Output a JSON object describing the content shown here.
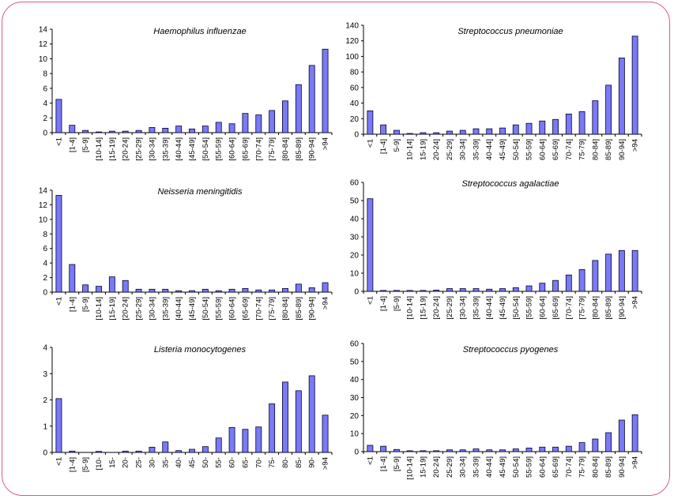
{
  "colors": {
    "bar_fill": "#7a7af5",
    "bar_stroke": "#000033",
    "frame": "#e0578a",
    "axis": "#000000"
  },
  "chart_data": [
    {
      "type": "bar",
      "title": "Haemophilus influenzae",
      "ylim": [
        0,
        14
      ],
      "yticks": [
        0,
        2,
        4,
        6,
        8,
        10,
        12,
        14
      ],
      "categories": [
        "<1",
        "[1-4]",
        "[5-9]",
        "[10-14]",
        "[15-19]",
        "[20-24]",
        "[25-29]",
        "[30-34]",
        "[35-39]",
        "[40-44]",
        "[45-49]",
        "[50-54]",
        "[55-59]",
        "[60-64]",
        "[65-69]",
        "[70-74]",
        "[75-79]",
        "[80-84]",
        "[85-89]",
        "[90-94]",
        ">94"
      ],
      "values": [
        4.5,
        1.0,
        0.3,
        0.1,
        0.2,
        0.2,
        0.3,
        0.7,
        0.6,
        0.9,
        0.5,
        0.9,
        1.4,
        1.2,
        2.6,
        2.4,
        3.0,
        4.3,
        6.5,
        9.1,
        11.3
      ]
    },
    {
      "type": "bar",
      "title": "Streptococcus pneumoniae",
      "ylim": [
        0,
        140
      ],
      "yticks": [
        0,
        20,
        40,
        60,
        80,
        100,
        120,
        140
      ],
      "categories": [
        "<1",
        "[1-4]",
        "5-9]",
        "10-14]",
        "15-19]",
        "20-24]",
        "25-29]",
        "30-34]",
        "35-39]",
        "40-44]",
        "45-49]",
        "50-54]",
        "55-59]",
        "60-64]",
        "65-69]",
        "70-74]",
        "75-79]",
        "80-84]",
        "85-89]",
        "90-94]",
        ">94"
      ],
      "values": [
        30,
        12,
        5,
        1,
        2,
        2,
        4,
        5,
        7,
        7,
        8,
        12,
        14,
        17,
        19,
        26,
        29,
        43,
        63,
        98,
        126
      ]
    },
    {
      "type": "bar",
      "title": "Neisseria meningitidis",
      "ylim": [
        0,
        14
      ],
      "yticks": [
        0,
        2,
        4,
        6,
        8,
        10,
        12,
        14
      ],
      "categories": [
        "<1",
        "[1-4]",
        "[5-9]",
        "[10-14]",
        "[15-19]",
        "[20-24]",
        "[25-29]",
        "[30-34]",
        "[35-39]",
        "[40-44]",
        "[45-49]",
        "[50-54]",
        "[55-59]",
        "[60-64]",
        "[65-69]",
        "[70-74]",
        "[75-79]",
        "[80-84]",
        "[85-89]",
        "[90-94]",
        ">94"
      ],
      "values": [
        13.3,
        3.8,
        1.0,
        0.8,
        2.1,
        1.6,
        0.4,
        0.4,
        0.4,
        0.2,
        0.2,
        0.4,
        0.2,
        0.4,
        0.5,
        0.3,
        0.3,
        0.5,
        1.1,
        0.6,
        1.3
      ]
    },
    {
      "type": "bar",
      "title": "Streptococcus agalactiae",
      "ylim": [
        0,
        60
      ],
      "yticks": [
        0,
        10,
        20,
        30,
        40,
        50,
        60
      ],
      "categories": [
        "<1",
        "[1-4]",
        "[5-9]",
        "[10-14]",
        "[15-19]",
        "[20-24]",
        "[25-29]",
        "[30-34]",
        "[35-39]",
        "[40-44]",
        "[45-49]",
        "[50-54]",
        "[55-59]",
        "[60-64]",
        "[65-69]",
        "[70-74]",
        "[75-79]",
        "[80-84]",
        "[85-89]",
        "[90-94]",
        ">94"
      ],
      "values": [
        51,
        0.5,
        0.5,
        0.5,
        0.5,
        0.7,
        1.5,
        1.5,
        1.5,
        1.2,
        1.5,
        2,
        3,
        4.5,
        6,
        9,
        12,
        17,
        20.5,
        22.5,
        22.5
      ]
    },
    {
      "type": "bar",
      "title": "Listeria monocytogenes",
      "ylim": [
        0,
        4
      ],
      "yticks": [
        0,
        1,
        2,
        3,
        4
      ],
      "categories": [
        "<1",
        "[1-4]",
        "[5-9]",
        "[10-",
        "15-",
        "20-",
        "25-",
        "30-",
        "35-",
        "40-",
        "45-",
        "50-",
        "55-",
        "60-",
        "65-",
        "70-",
        "75-",
        "80-",
        "85-",
        "90-",
        ">94"
      ],
      "values": [
        2.05,
        0.05,
        0.0,
        0.04,
        0.0,
        0.05,
        0.05,
        0.2,
        0.4,
        0.07,
        0.12,
        0.22,
        0.55,
        0.95,
        0.88,
        0.97,
        1.85,
        2.68,
        2.35,
        2.92,
        1.42
      ]
    },
    {
      "type": "bar",
      "title": "Streptococcus pyogenes",
      "ylim": [
        0,
        60
      ],
      "yticks": [
        0,
        10,
        20,
        30,
        40,
        50,
        60
      ],
      "categories": [
        "<1",
        "[1-4]",
        "[5-9]",
        "[10-14]",
        "15-19]",
        "20-24]",
        "25-29]",
        "30-34]",
        "35-39]",
        "40-44]",
        "45-49]",
        "50-54]",
        "55-59]",
        "60-64]",
        "65-69]",
        "70-74]",
        "75-79]",
        "80-84]",
        "85-89]",
        "90-94]",
        ">94"
      ],
      "values": [
        3.5,
        3,
        1.2,
        0.5,
        0.5,
        0.5,
        1,
        1,
        1.5,
        1,
        1,
        1.5,
        2,
        2.5,
        2.5,
        3,
        5,
        7,
        10.5,
        17.5,
        20.5
      ]
    }
  ]
}
